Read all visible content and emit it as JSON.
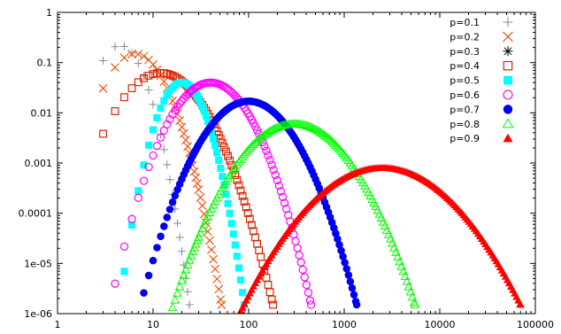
{
  "chart_data": {
    "type": "scatter",
    "title": "",
    "xlabel": "",
    "ylabel": "",
    "x_scale": "log",
    "y_scale": "log",
    "xlim": [
      1,
      100000
    ],
    "ylim": [
      1e-06,
      1
    ],
    "x_ticks": [
      "1",
      "10",
      "100",
      "1000",
      "10000",
      "100000"
    ],
    "y_ticks": [
      "1e-06",
      "1e-05",
      "0.0001",
      "0.001",
      "0.01",
      "0.1",
      "1"
    ],
    "grid": false,
    "legend_position": "top-right",
    "series": [
      {
        "name": "p=0.1",
        "color": "#888888",
        "marker": "plus",
        "peak_x": 4.5,
        "peak_y": 0.22,
        "x_min": 3,
        "x_end": 24,
        "y_end": 1.5e-06
      },
      {
        "name": "p=0.2",
        "color": "#ee5511",
        "marker": "cross",
        "peak_x": 6.5,
        "peak_y": 0.15,
        "x_min": 3,
        "x_end": 52,
        "y_end": 1.5e-06
      },
      {
        "name": "p=0.3",
        "color": "#000000",
        "marker": "star",
        "peak_x": 0,
        "peak_y": 0,
        "x_min": 0,
        "x_end": 0,
        "y_end": 0
      },
      {
        "name": "p=0.4",
        "color": "#dd2200",
        "marker": "square-open",
        "peak_x": 12,
        "peak_y": 0.062,
        "x_min": 3,
        "x_end": 180,
        "y_end": 1.5e-06
      },
      {
        "name": "p=0.5",
        "color": "#00ffff",
        "marker": "square-filled",
        "peak_x": 20,
        "peak_y": 0.04,
        "x_min": 3,
        "x_end": 90,
        "y_end": 1.5e-06
      },
      {
        "name": "p=0.6",
        "color": "#ff00ff",
        "marker": "circle-open",
        "peak_x": 40,
        "peak_y": 0.04,
        "x_min": 3,
        "x_end": 450,
        "y_end": 1.5e-06
      },
      {
        "name": "p=0.7",
        "color": "#0000ee",
        "marker": "circle-filled",
        "peak_x": 100,
        "peak_y": 0.017,
        "x_min": 3,
        "x_end": 1350,
        "y_end": 1.5e-06
      },
      {
        "name": "p=0.8",
        "color": "#00ff00",
        "marker": "triangle-open",
        "peak_x": 300,
        "peak_y": 0.006,
        "x_min": 3,
        "x_end": 5500,
        "y_end": 1.5e-06
      },
      {
        "name": "p=0.9",
        "color": "#ff0000",
        "marker": "triangle-filled",
        "peak_x": 2500,
        "peak_y": 0.0008,
        "x_min": 20,
        "x_end": 70000,
        "y_end": 1.5e-06
      }
    ]
  }
}
